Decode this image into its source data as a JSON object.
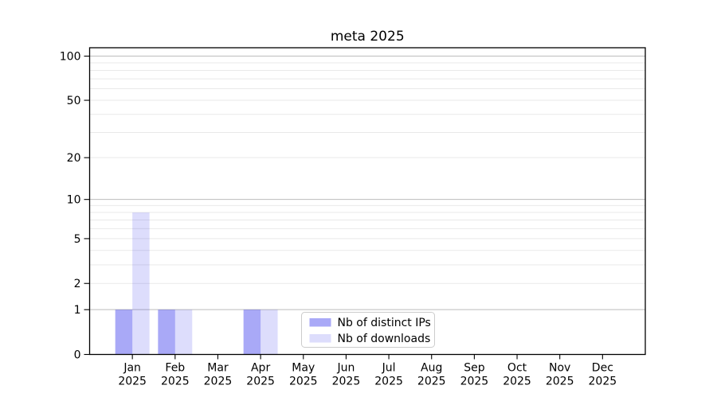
{
  "chart_data": {
    "type": "bar",
    "title": "meta 2025",
    "categories": [
      "Jan",
      "Feb",
      "Mar",
      "Apr",
      "May",
      "Jun",
      "Jul",
      "Aug",
      "Sep",
      "Oct",
      "Nov",
      "Dec"
    ],
    "x_year_label": "2025",
    "series": [
      {
        "name": "Nb of distinct IPs",
        "color": "#1e1eeb",
        "alpha": 0.38,
        "values": [
          1,
          1,
          0,
          1,
          0,
          0,
          0,
          0,
          0,
          0,
          0,
          0
        ]
      },
      {
        "name": "Nb of downloads",
        "color": "#1e1eeb",
        "alpha": 0.15,
        "values": [
          8,
          1,
          0,
          1,
          0,
          0,
          0,
          0,
          0,
          0,
          0,
          0
        ]
      }
    ],
    "yscale": "log10(1+y)",
    "ylim": [
      0,
      114
    ],
    "yticks": [
      0,
      1,
      2,
      5,
      10,
      20,
      50,
      100
    ],
    "grid": {
      "major_at": [
        1,
        10,
        100
      ],
      "minor_at": [
        2,
        3,
        4,
        5,
        6,
        7,
        8,
        9,
        20,
        30,
        40,
        50,
        60,
        70,
        80,
        90
      ],
      "major_color": "#bcbcbc",
      "minor_color": "#e9e9e9"
    },
    "axis_color": "#000000",
    "legend": {
      "position": "lower center",
      "border_color": "#cccccc",
      "background": "#ffffff"
    }
  }
}
